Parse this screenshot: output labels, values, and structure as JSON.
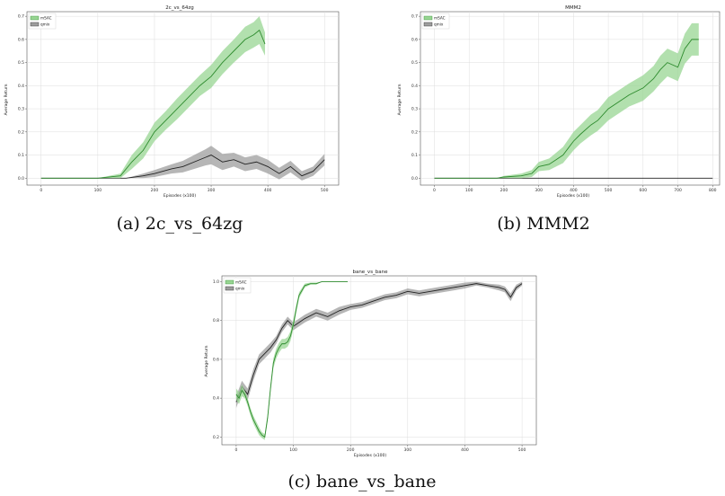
{
  "colors": {
    "sac": "#2e8b2e",
    "sac_band": "#98d593",
    "qmix": "#222222",
    "qmix_band": "#9e9e9e"
  },
  "captions": [
    "(a) 2c_vs_64zg",
    "(b) MMM2",
    "(c) bane_vs_bane"
  ],
  "chart_data": [
    {
      "type": "line",
      "title": "2c_vs_64zg",
      "xlabel": "Episodes (x100)",
      "ylabel": "Average Return",
      "xlim": [
        -25,
        525
      ],
      "ylim": [
        -0.03,
        0.72
      ],
      "xticks": [
        0,
        100,
        200,
        300,
        400,
        500
      ],
      "yticks": [
        0.0,
        0.1,
        0.2,
        0.3,
        0.4,
        0.5,
        0.6,
        0.7
      ],
      "grid": true,
      "legend_placement": "top-left",
      "series": [
        {
          "name": "mSAC",
          "color": "sac",
          "x": [
            0,
            100,
            140,
            160,
            180,
            200,
            220,
            240,
            260,
            280,
            300,
            320,
            340,
            360,
            375,
            385,
            395
          ],
          "y": [
            0.0,
            0.0,
            0.01,
            0.07,
            0.12,
            0.2,
            0.25,
            0.3,
            0.35,
            0.4,
            0.44,
            0.5,
            0.55,
            0.6,
            0.62,
            0.64,
            0.58
          ],
          "band": [
            0.0,
            0.0,
            0.01,
            0.03,
            0.035,
            0.04,
            0.04,
            0.045,
            0.045,
            0.045,
            0.05,
            0.05,
            0.05,
            0.055,
            0.055,
            0.06,
            0.05
          ]
        },
        {
          "name": "qmix",
          "color": "qmix",
          "x": [
            0,
            150,
            180,
            200,
            230,
            250,
            270,
            290,
            300,
            320,
            340,
            360,
            380,
            400,
            420,
            440,
            460,
            480,
            500
          ],
          "y": [
            0.0,
            0.0,
            0.01,
            0.02,
            0.04,
            0.05,
            0.07,
            0.09,
            0.1,
            0.07,
            0.08,
            0.06,
            0.07,
            0.05,
            0.02,
            0.05,
            0.01,
            0.03,
            0.08
          ],
          "band": [
            0.0,
            0.0,
            0.01,
            0.015,
            0.02,
            0.025,
            0.03,
            0.035,
            0.04,
            0.035,
            0.03,
            0.03,
            0.03,
            0.03,
            0.025,
            0.025,
            0.02,
            0.02,
            0.025
          ]
        }
      ]
    },
    {
      "type": "line",
      "title": "MMM2",
      "xlabel": "Episodes (x100)",
      "ylabel": "Average Return",
      "xlim": [
        -40,
        820
      ],
      "ylim": [
        -0.03,
        0.72
      ],
      "xticks": [
        0,
        100,
        200,
        300,
        400,
        500,
        600,
        700,
        800
      ],
      "yticks": [
        0.0,
        0.1,
        0.2,
        0.3,
        0.4,
        0.5,
        0.6,
        0.7
      ],
      "grid": true,
      "legend_placement": "top-left",
      "series": [
        {
          "name": "mSAC",
          "color": "sac",
          "x": [
            0,
            180,
            200,
            250,
            280,
            300,
            330,
            350,
            370,
            400,
            420,
            450,
            470,
            500,
            530,
            560,
            600,
            630,
            650,
            670,
            700,
            720,
            740,
            760
          ],
          "y": [
            0.0,
            0.0,
            0.005,
            0.01,
            0.02,
            0.05,
            0.06,
            0.08,
            0.1,
            0.16,
            0.19,
            0.23,
            0.25,
            0.3,
            0.33,
            0.36,
            0.39,
            0.43,
            0.47,
            0.5,
            0.48,
            0.56,
            0.6,
            0.6
          ],
          "band": [
            0.0,
            0.0,
            0.005,
            0.01,
            0.015,
            0.02,
            0.025,
            0.03,
            0.035,
            0.04,
            0.04,
            0.045,
            0.045,
            0.05,
            0.05,
            0.05,
            0.055,
            0.055,
            0.06,
            0.06,
            0.06,
            0.065,
            0.07,
            0.07
          ]
        },
        {
          "name": "qmix",
          "color": "qmix",
          "x": [
            0,
            800
          ],
          "y": [
            0.0,
            0.0
          ],
          "band": [
            0.0,
            0.0
          ]
        }
      ]
    },
    {
      "type": "line",
      "title": "bane_vs_bane",
      "xlabel": "Episodes (x100)",
      "ylabel": "Average Return",
      "xlim": [
        -25,
        525
      ],
      "ylim": [
        0.16,
        1.03
      ],
      "xticks": [
        0,
        100,
        200,
        300,
        400,
        500
      ],
      "yticks": [
        0.2,
        0.4,
        0.6,
        0.8,
        1.0
      ],
      "grid": true,
      "legend_placement": "top-left",
      "series": [
        {
          "name": "mSAC",
          "color": "sac",
          "x": [
            0,
            5,
            10,
            15,
            20,
            25,
            30,
            35,
            40,
            45,
            50,
            55,
            60,
            65,
            70,
            75,
            80,
            85,
            90,
            95,
            100,
            105,
            110,
            120,
            130,
            140,
            150,
            160,
            170,
            180,
            190,
            195
          ],
          "y": [
            0.42,
            0.4,
            0.44,
            0.42,
            0.38,
            0.33,
            0.29,
            0.26,
            0.23,
            0.21,
            0.2,
            0.3,
            0.45,
            0.58,
            0.63,
            0.66,
            0.68,
            0.68,
            0.69,
            0.72,
            0.78,
            0.86,
            0.93,
            0.98,
            0.99,
            0.99,
            1.0,
            1.0,
            1.0,
            1.0,
            1.0,
            1.0
          ],
          "band": [
            0.03,
            0.03,
            0.03,
            0.02,
            0.02,
            0.02,
            0.02,
            0.02,
            0.02,
            0.015,
            0.015,
            0.02,
            0.02,
            0.025,
            0.025,
            0.025,
            0.025,
            0.025,
            0.025,
            0.025,
            0.025,
            0.02,
            0.015,
            0.01,
            0.005,
            0.005,
            0.0,
            0.0,
            0.0,
            0.0,
            0.0,
            0.0
          ]
        },
        {
          "name": "qmix",
          "color": "qmix",
          "x": [
            0,
            10,
            20,
            30,
            40,
            50,
            60,
            70,
            80,
            90,
            100,
            120,
            140,
            160,
            180,
            200,
            220,
            240,
            260,
            280,
            300,
            320,
            340,
            360,
            380,
            400,
            420,
            440,
            460,
            470,
            480,
            490,
            500
          ],
          "y": [
            0.38,
            0.46,
            0.42,
            0.52,
            0.6,
            0.63,
            0.66,
            0.7,
            0.76,
            0.8,
            0.77,
            0.81,
            0.84,
            0.82,
            0.85,
            0.87,
            0.88,
            0.9,
            0.92,
            0.93,
            0.95,
            0.94,
            0.95,
            0.96,
            0.97,
            0.98,
            0.99,
            0.98,
            0.97,
            0.96,
            0.92,
            0.97,
            0.99
          ],
          "band": [
            0.03,
            0.03,
            0.03,
            0.03,
            0.025,
            0.025,
            0.025,
            0.02,
            0.02,
            0.02,
            0.02,
            0.02,
            0.02,
            0.02,
            0.02,
            0.015,
            0.015,
            0.015,
            0.015,
            0.015,
            0.015,
            0.015,
            0.015,
            0.015,
            0.015,
            0.015,
            0.01,
            0.01,
            0.015,
            0.015,
            0.02,
            0.015,
            0.01
          ]
        }
      ]
    }
  ]
}
